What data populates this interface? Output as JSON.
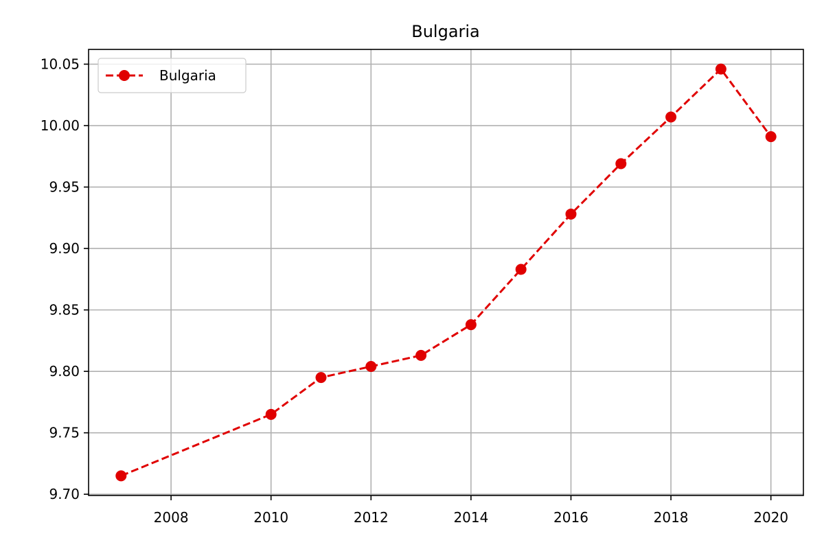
{
  "chart_data": {
    "type": "line",
    "title": "Bulgaria",
    "xlabel": "",
    "ylabel": "",
    "x": [
      2007,
      2010,
      2011,
      2012,
      2013,
      2014,
      2015,
      2016,
      2017,
      2018,
      2019,
      2020
    ],
    "series": [
      {
        "name": "Bulgaria",
        "color": "#e00000",
        "line_style": "dashed",
        "marker": "circle",
        "values": [
          9.715,
          9.765,
          9.795,
          9.804,
          9.813,
          9.838,
          9.883,
          9.928,
          9.969,
          10.007,
          10.046,
          9.991
        ]
      }
    ],
    "x_ticks": [
      2008,
      2010,
      2012,
      2014,
      2016,
      2018,
      2020
    ],
    "x_tick_labels": [
      "2008",
      "2010",
      "2012",
      "2014",
      "2016",
      "2018",
      "2020"
    ],
    "y_ticks": [
      9.7,
      9.75,
      9.8,
      9.85,
      9.9,
      9.95,
      10.0,
      10.05
    ],
    "y_tick_labels": [
      "9.70",
      "9.75",
      "9.80",
      "9.85",
      "9.90",
      "9.95",
      "10.00",
      "10.05"
    ],
    "xlim": [
      2006.35,
      2020.65
    ],
    "ylim": [
      9.699,
      10.062
    ],
    "grid": true,
    "legend_position": "top-left"
  }
}
